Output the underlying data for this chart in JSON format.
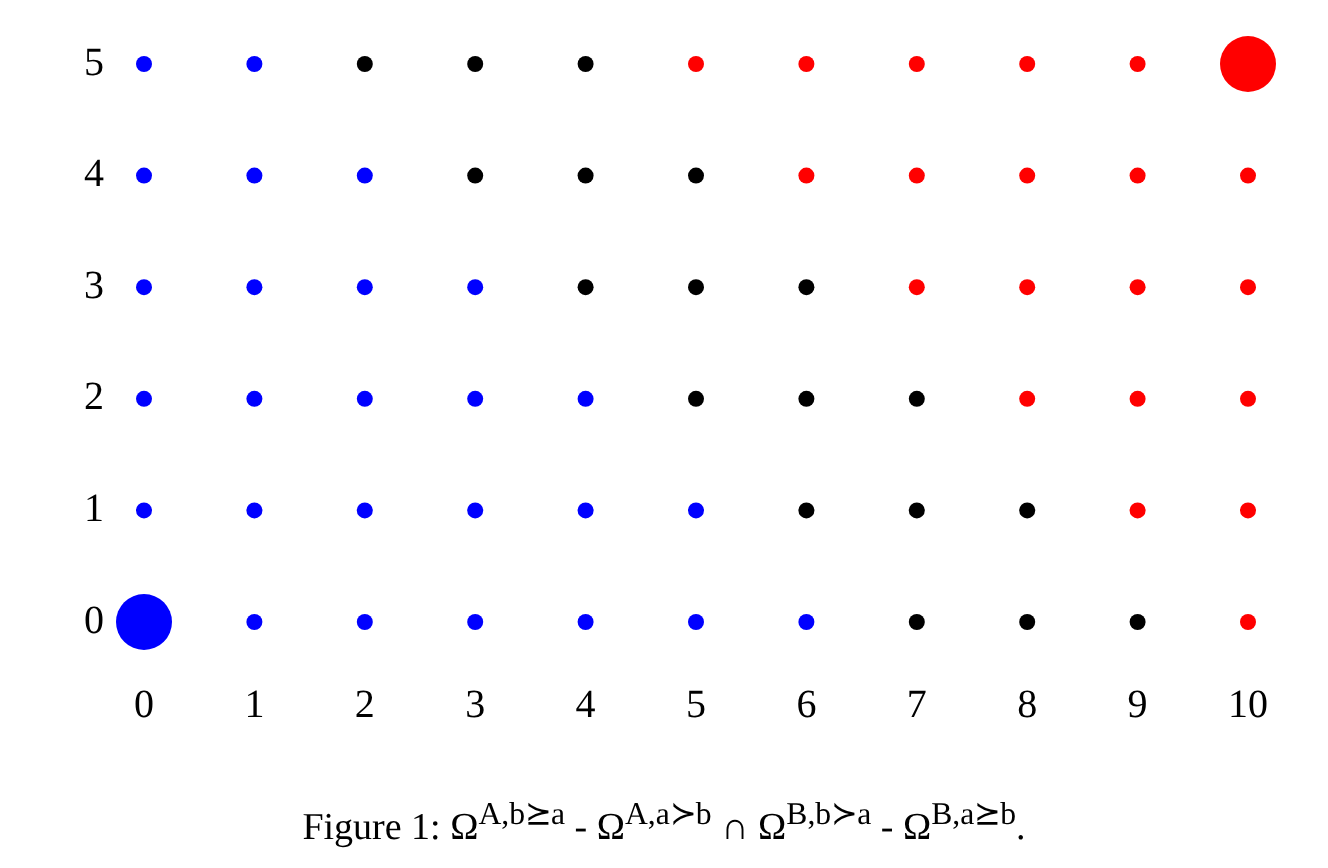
{
  "chart_data": {
    "type": "scatter",
    "title": "Figure 1: Ω$^{A,b⪰a}$ - Ω$^{A,a≻b}$ ∩ Ω$^{B,b≻a}$ - Ω$^{B,a⪰b}$.",
    "xlim": [
      0,
      10
    ],
    "ylim": [
      0,
      5
    ],
    "xticks": [
      0,
      1,
      2,
      3,
      4,
      5,
      6,
      7,
      8,
      9,
      10
    ],
    "yticks": [
      0,
      1,
      2,
      3,
      4,
      5
    ],
    "grid": false,
    "legend": false,
    "marker": "circle",
    "series": [
      {
        "color": "#0000ff",
        "x": [
          1,
          2,
          3,
          4,
          5,
          6,
          0,
          1,
          2,
          3,
          4,
          5,
          0,
          1,
          2,
          3,
          4,
          0,
          1,
          2,
          3,
          0,
          1,
          2,
          0,
          1
        ],
        "values": [
          0,
          0,
          0,
          0,
          0,
          0,
          1,
          1,
          1,
          1,
          1,
          1,
          2,
          2,
          2,
          2,
          2,
          3,
          3,
          3,
          3,
          4,
          4,
          4,
          5,
          5
        ]
      },
      {
        "type": "bubble",
        "color": "#0000ff",
        "x": [
          0
        ],
        "values": [
          0
        ],
        "sizes": [
          1
        ]
      },
      {
        "color": "#000000",
        "x": [
          7,
          8,
          9,
          6,
          7,
          8,
          5,
          6,
          7,
          4,
          5,
          6,
          3,
          4,
          5,
          2,
          3,
          4
        ],
        "values": [
          0,
          0,
          0,
          1,
          1,
          1,
          2,
          2,
          2,
          3,
          3,
          3,
          4,
          4,
          4,
          5,
          5,
          5
        ]
      },
      {
        "color": "#ff0000",
        "x": [
          10,
          9,
          10,
          8,
          9,
          10,
          7,
          8,
          9,
          10,
          6,
          7,
          8,
          9,
          10,
          5,
          6,
          7,
          8,
          9
        ],
        "values": [
          0,
          1,
          1,
          2,
          2,
          2,
          3,
          3,
          3,
          3,
          4,
          4,
          4,
          4,
          4,
          5,
          5,
          5,
          5,
          5
        ]
      },
      {
        "type": "bubble",
        "color": "#ff0000",
        "x": [
          10
        ],
        "values": [
          5
        ],
        "sizes": [
          1
        ]
      }
    ]
  }
}
